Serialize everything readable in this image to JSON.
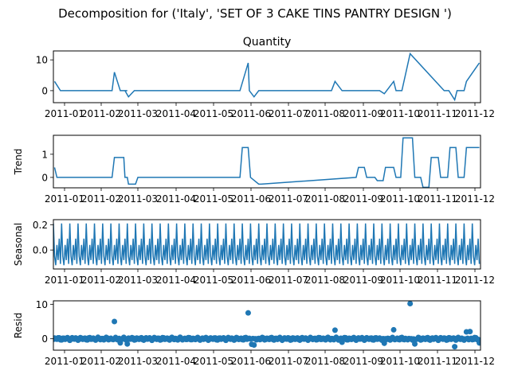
{
  "figure": {
    "title": "Decomposition for ('Italy', 'SET OF 3 CAKE TINS PANTRY DESIGN ')",
    "line_color": "#1f77b4"
  },
  "chart_data": [
    {
      "type": "line",
      "panel": "observed",
      "title": "Quantity",
      "ylabel": "",
      "ylim": [
        -3.9,
        12.9
      ],
      "yticks": [
        0,
        10
      ],
      "xticks": [
        "2011-01",
        "2011-02",
        "2011-03",
        "2011-04",
        "2011-05",
        "2011-06",
        "2011-07",
        "2011-08",
        "2011-09",
        "2011-10",
        "2011-11",
        "2011-12"
      ],
      "x": [
        1,
        6,
        40,
        50,
        52,
        57,
        63,
        61,
        64,
        69,
        70,
        159,
        166,
        167,
        167,
        171,
        175,
        237,
        240,
        246,
        278,
        282,
        284,
        290,
        292,
        297,
        304,
        333,
        337,
        342,
        344,
        350,
        352,
        363
      ],
      "y": [
        3,
        0,
        0,
        0,
        6,
        0,
        0,
        0,
        -2,
        0,
        0,
        0,
        9,
        0,
        0,
        -2,
        0,
        0,
        3,
        0,
        0,
        -1,
        0,
        3,
        0,
        0,
        12,
        0,
        0,
        -3,
        0,
        0,
        3,
        9
      ]
    },
    {
      "type": "line",
      "panel": "trend",
      "title": "",
      "ylabel": "Trend",
      "ylim": [
        -0.45,
        1.82
      ],
      "yticks": [
        0,
        1
      ],
      "xticks": [
        "2011-01",
        "2011-02",
        "2011-03",
        "2011-04",
        "2011-05",
        "2011-06",
        "2011-07",
        "2011-08",
        "2011-09",
        "2011-10",
        "2011-11",
        "2011-12"
      ],
      "x": [
        1,
        3,
        50,
        52,
        60,
        61,
        63,
        64,
        70,
        72,
        159,
        161,
        166,
        168,
        175,
        177,
        258,
        260,
        265,
        267,
        274,
        276,
        281,
        283,
        290,
        292,
        296,
        298,
        306,
        308,
        313,
        315,
        320,
        322,
        328,
        330,
        336,
        338,
        343,
        345,
        350,
        352,
        363
      ],
      "y": [
        0.43,
        0,
        0,
        0.86,
        0.86,
        0,
        0,
        -0.29,
        -0.29,
        0,
        0,
        1.29,
        1.29,
        0,
        -0.29,
        -0.29,
        0,
        0.43,
        0.43,
        0,
        0,
        -0.14,
        -0.14,
        0.43,
        0.43,
        0,
        0,
        1.71,
        1.71,
        0,
        0,
        -0.43,
        -0.43,
        0.86,
        0.86,
        0,
        0,
        1.29,
        1.29,
        0,
        0,
        1.29,
        1.29
      ]
    },
    {
      "type": "line",
      "panel": "seasonal",
      "title": "",
      "ylabel": "Seasonal",
      "ylim": [
        -0.15,
        0.24
      ],
      "yticks": [
        0.0,
        0.2
      ],
      "xticks": [
        "2011-01",
        "2011-02",
        "2011-03",
        "2011-04",
        "2011-05",
        "2011-06",
        "2011-07",
        "2011-08",
        "2011-09",
        "2011-10",
        "2011-11",
        "2011-12"
      ],
      "period": 7,
      "pattern": [
        0.21,
        -0.05,
        -0.12,
        0.04,
        -0.08,
        0.09,
        -0.11
      ],
      "n": 364
    },
    {
      "type": "scatter",
      "panel": "resid",
      "title": "",
      "ylabel": "Resid",
      "ylim": [
        -3.3,
        11.0
      ],
      "yticks": [
        0,
        10
      ],
      "xticks": [
        "2011-01",
        "2011-02",
        "2011-03",
        "2011-04",
        "2011-05",
        "2011-06",
        "2011-07",
        "2011-08",
        "2011-09",
        "2011-10",
        "2011-11",
        "2011-12"
      ],
      "n": 364,
      "outliers": [
        {
          "x": 52,
          "y": 5
        },
        {
          "x": 57,
          "y": -1.2
        },
        {
          "x": 63,
          "y": -1.5
        },
        {
          "x": 166,
          "y": 7.5
        },
        {
          "x": 169,
          "y": -1.6
        },
        {
          "x": 171,
          "y": -1.8
        },
        {
          "x": 240,
          "y": 2.5
        },
        {
          "x": 246,
          "y": -1.0
        },
        {
          "x": 282,
          "y": -1.3
        },
        {
          "x": 290,
          "y": 2.6
        },
        {
          "x": 304,
          "y": 10.2
        },
        {
          "x": 308,
          "y": -1.5
        },
        {
          "x": 342,
          "y": -2.3
        },
        {
          "x": 352,
          "y": 2.0
        },
        {
          "x": 355,
          "y": 2.1
        },
        {
          "x": 363,
          "y": -1.2
        }
      ]
    }
  ]
}
